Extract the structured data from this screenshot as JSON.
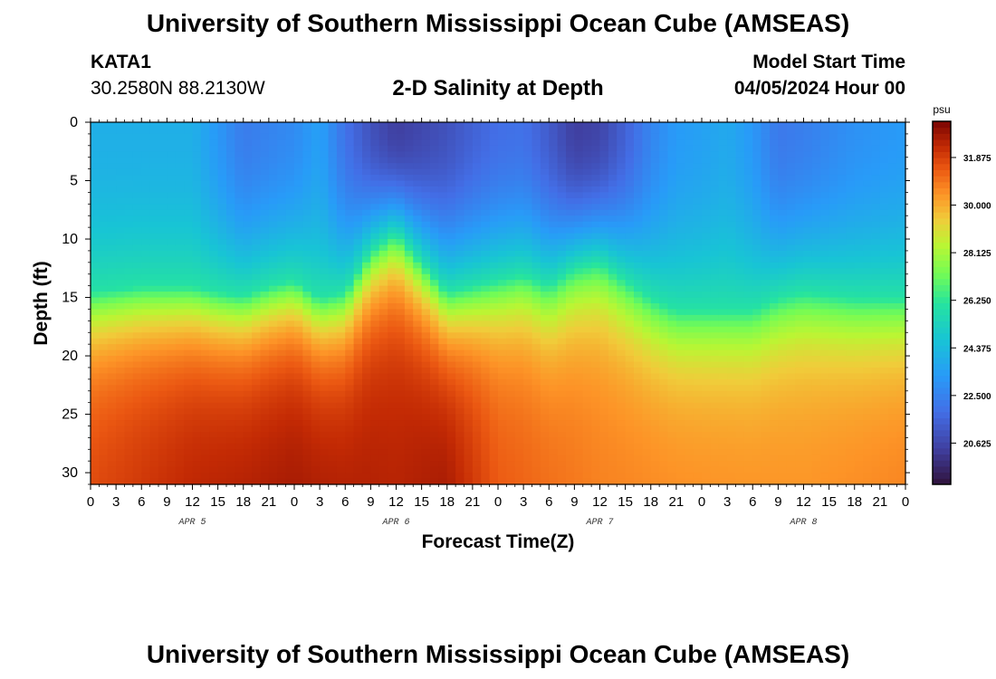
{
  "header": {
    "title": "University of Southern Mississippi Ocean Cube (AMSEAS)",
    "station": "KATA1",
    "coords": "30.2580N  88.2130W",
    "subtitle": "2-D Salinity at Depth",
    "start_label": "Model Start Time",
    "start_value": "04/05/2024 Hour 00"
  },
  "footer": {
    "title": "University of Southern Mississippi Ocean Cube (AMSEAS)"
  },
  "colors": {
    "low": "#30123b",
    "high": "#7a0403"
  },
  "chart_data": {
    "type": "heatmap",
    "title": "2-D Salinity at Depth",
    "xlabel": "Forecast Time(Z)",
    "ylabel": "Depth (ft)",
    "xlim": [
      0,
      96
    ],
    "ylim": [
      31,
      0
    ],
    "x_tick_labels": [
      "0",
      "3",
      "6",
      "9",
      "12",
      "15",
      "18",
      "21",
      "0",
      "3",
      "6",
      "9",
      "12",
      "15",
      "18",
      "21",
      "0",
      "3",
      "6",
      "9",
      "12",
      "15",
      "18",
      "21",
      "0",
      "3",
      "6",
      "9",
      "12",
      "15",
      "18",
      "21",
      "0"
    ],
    "y_ticks": [
      0,
      5,
      10,
      15,
      20,
      25,
      30
    ],
    "day_labels": [
      {
        "hour": 12,
        "label": "APR 5"
      },
      {
        "hour": 36,
        "label": "APR 6"
      },
      {
        "hour": 60,
        "label": "APR 7"
      },
      {
        "hour": 84,
        "label": "APR 8"
      }
    ],
    "colorbar": {
      "unit": "psu",
      "min": 19.0,
      "max": 33.3,
      "ticks": [
        20.625,
        22.5,
        24.375,
        26.25,
        28.125,
        30.0,
        31.875
      ],
      "tick_labels": [
        "20.625",
        "22.500",
        "24.375",
        "26.250",
        "28.125",
        "30.000",
        "31.875"
      ]
    },
    "surface_salinity_psu": [
      {
        "hour": 0,
        "value": 24.0
      },
      {
        "hour": 6,
        "value": 24.0
      },
      {
        "hour": 12,
        "value": 24.0
      },
      {
        "hour": 15,
        "value": 23.2
      },
      {
        "hour": 18,
        "value": 22.3
      },
      {
        "hour": 24,
        "value": 22.8
      },
      {
        "hour": 27,
        "value": 23.5
      },
      {
        "hour": 30,
        "value": 22.0
      },
      {
        "hour": 33,
        "value": 21.0
      },
      {
        "hour": 36,
        "value": 20.4
      },
      {
        "hour": 42,
        "value": 21.0
      },
      {
        "hour": 45,
        "value": 21.5
      },
      {
        "hour": 48,
        "value": 21.9
      },
      {
        "hour": 51,
        "value": 22.0
      },
      {
        "hour": 54,
        "value": 21.3
      },
      {
        "hour": 57,
        "value": 20.4
      },
      {
        "hour": 60,
        "value": 20.6
      },
      {
        "hour": 63,
        "value": 21.5
      },
      {
        "hour": 66,
        "value": 22.6
      },
      {
        "hour": 69,
        "value": 23.3
      },
      {
        "hour": 72,
        "value": 23.5
      },
      {
        "hour": 75,
        "value": 23.8
      },
      {
        "hour": 78,
        "value": 23.2
      },
      {
        "hour": 81,
        "value": 22.2
      },
      {
        "hour": 84,
        "value": 22.4
      },
      {
        "hour": 90,
        "value": 23.0
      },
      {
        "hour": 96,
        "value": 23.3
      }
    ],
    "isohaline_26psu_depth_ft": [
      {
        "hour": 0,
        "value": 14.5
      },
      {
        "hour": 6,
        "value": 14.0
      },
      {
        "hour": 12,
        "value": 14.0
      },
      {
        "hour": 15,
        "value": 14.5
      },
      {
        "hour": 18,
        "value": 14.8
      },
      {
        "hour": 21,
        "value": 14.0
      },
      {
        "hour": 24,
        "value": 13.5
      },
      {
        "hour": 27,
        "value": 15.0
      },
      {
        "hour": 30,
        "value": 14.5
      },
      {
        "hour": 33,
        "value": 11.0
      },
      {
        "hour": 36,
        "value": 9.5
      },
      {
        "hour": 39,
        "value": 12.0
      },
      {
        "hour": 42,
        "value": 14.5
      },
      {
        "hour": 45,
        "value": 14.0
      },
      {
        "hour": 48,
        "value": 13.5
      },
      {
        "hour": 51,
        "value": 13.0
      },
      {
        "hour": 54,
        "value": 14.0
      },
      {
        "hour": 57,
        "value": 12.5
      },
      {
        "hour": 60,
        "value": 12.0
      },
      {
        "hour": 63,
        "value": 13.5
      },
      {
        "hour": 66,
        "value": 15.0
      },
      {
        "hour": 69,
        "value": 16.0
      },
      {
        "hour": 72,
        "value": 16.0
      },
      {
        "hour": 78,
        "value": 16.0
      },
      {
        "hour": 81,
        "value": 15.0
      },
      {
        "hour": 84,
        "value": 14.5
      },
      {
        "hour": 90,
        "value": 15.0
      },
      {
        "hour": 96,
        "value": 15.0
      }
    ],
    "bottom_salinity_psu": [
      {
        "hour": 0,
        "value": 31.8
      },
      {
        "hour": 12,
        "value": 32.5
      },
      {
        "hour": 24,
        "value": 32.8
      },
      {
        "hour": 36,
        "value": 32.5
      },
      {
        "hour": 42,
        "value": 32.8
      },
      {
        "hour": 48,
        "value": 31.5
      },
      {
        "hour": 60,
        "value": 30.8
      },
      {
        "hour": 72,
        "value": 30.6
      },
      {
        "hour": 84,
        "value": 30.5
      },
      {
        "hour": 96,
        "value": 30.8
      }
    ]
  }
}
